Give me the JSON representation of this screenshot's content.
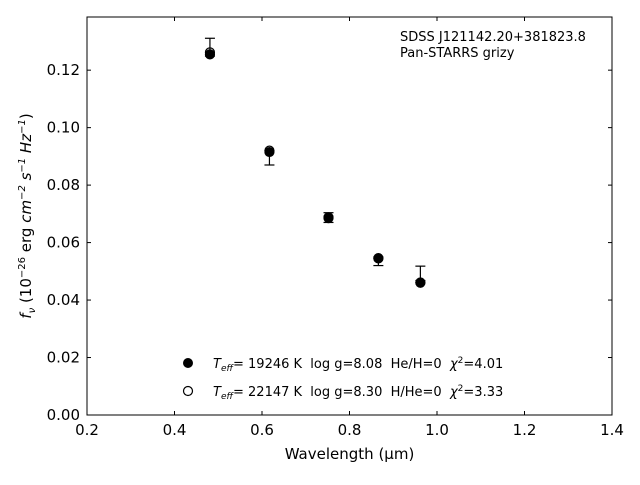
{
  "chart_data": {
    "type": "scatter",
    "xlabel": "Wavelength (μm)",
    "ylabel": {
      "base": "f",
      "sub": "ν",
      "pre": " (10",
      "exp1": "−26",
      "mid1": " erg ",
      "cm": "cm",
      "exp2": "−2",
      "s": " s",
      "exp3": "−1",
      "hz": " Hz",
      "exp4": "−1",
      "close": ")"
    },
    "annotation": [
      "SDSS J121142.20+381823.8",
      "Pan-STARRS grizy"
    ],
    "xlim": [
      0.2,
      1.4
    ],
    "ylim": [
      0.0,
      0.1385
    ],
    "xticks": [
      0.2,
      0.4,
      0.6,
      0.8,
      1.0,
      1.2,
      1.4
    ],
    "xtick_labels": [
      "0.2",
      "0.4",
      "0.6",
      "0.8",
      "1.0",
      "1.2",
      "1.4"
    ],
    "yticks": [
      0.0,
      0.02,
      0.04,
      0.06,
      0.08,
      0.1,
      0.12
    ],
    "ytick_labels": [
      "0.00",
      "0.02",
      "0.04",
      "0.06",
      "0.08",
      "0.10",
      "0.12"
    ],
    "grid": false,
    "observed": {
      "x": [
        0.481,
        0.617,
        0.752,
        0.866,
        0.962
      ],
      "y": [
        0.128,
        0.0895,
        0.0687,
        0.0535,
        0.0493
      ],
      "yerr": [
        0.0031,
        0.0025,
        0.0017,
        0.0015,
        0.0025
      ]
    },
    "series": [
      {
        "label_T": "T",
        "label_sub": "eff",
        "label_rest": "= 19246 K  log g=8.08  He/H=0  ",
        "label_chi": "χ",
        "label_chi_exp": "2",
        "label_chi_val": "=4.01",
        "marker": "filled",
        "x": [
          0.481,
          0.617,
          0.752,
          0.866,
          0.962
        ],
        "y": [
          0.1255,
          0.0915,
          0.0685,
          0.0545,
          0.046
        ]
      },
      {
        "label_T": "T",
        "label_sub": "eff",
        "label_rest": "= 22147 K  log g=8.30  H/He=0  ",
        "label_chi": "χ",
        "label_chi_exp": "2",
        "label_chi_val": "=3.33",
        "marker": "open",
        "x": [
          0.481,
          0.617,
          0.752,
          0.866,
          0.962
        ],
        "y": [
          0.1262,
          0.092,
          0.0688,
          0.0546,
          0.0461
        ]
      }
    ]
  }
}
